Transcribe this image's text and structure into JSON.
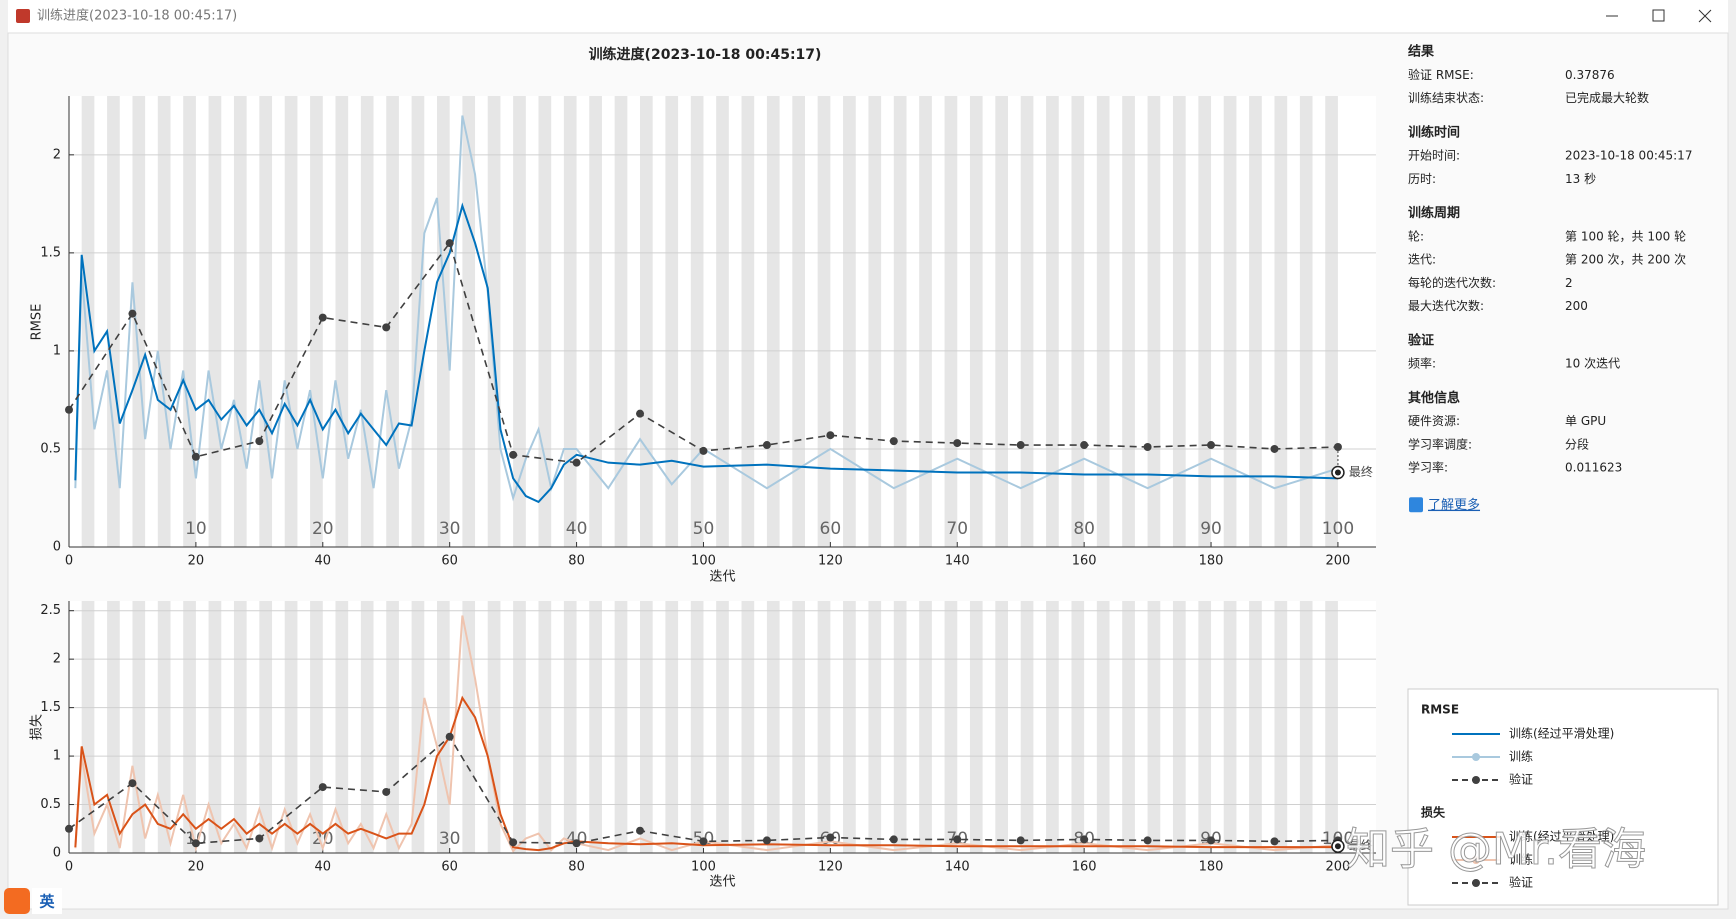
{
  "window": {
    "title": "训练进度(2023-10-18 00:45:17)"
  },
  "chart_data": [
    {
      "type": "line",
      "title": "训练进度(2023-10-18 00:45:17)",
      "ylabel": "RMSE",
      "xlabel": "迭代",
      "xlim": [
        0,
        206
      ],
      "ylim": [
        0,
        2.3
      ],
      "xticks": [
        0,
        20,
        40,
        60,
        80,
        100,
        120,
        140,
        160,
        180,
        200
      ],
      "yticks": [
        0,
        0.5,
        1,
        1.5,
        2
      ],
      "epoch_ticks": [
        10,
        20,
        30,
        40,
        50,
        60,
        70,
        80,
        90,
        100
      ],
      "grid": true,
      "series": [
        {
          "name": "训练",
          "color": "#a9c9de",
          "style": "solid",
          "x": [
            1,
            2,
            4,
            6,
            8,
            10,
            12,
            14,
            16,
            18,
            20,
            22,
            24,
            26,
            28,
            30,
            32,
            34,
            36,
            38,
            40,
            42,
            44,
            46,
            48,
            50,
            52,
            54,
            56,
            58,
            60,
            62,
            64,
            66,
            68,
            70,
            72,
            74,
            76,
            78,
            80,
            85,
            90,
            95,
            100,
            110,
            120,
            130,
            140,
            150,
            160,
            170,
            180,
            190,
            200
          ],
          "values": [
            0.3,
            1.4,
            0.6,
            0.9,
            0.3,
            1.35,
            0.55,
            1.0,
            0.5,
            0.9,
            0.35,
            0.9,
            0.5,
            0.75,
            0.4,
            0.85,
            0.35,
            0.85,
            0.5,
            0.8,
            0.35,
            0.85,
            0.45,
            0.7,
            0.3,
            0.8,
            0.4,
            0.65,
            1.6,
            1.78,
            0.9,
            2.2,
            1.9,
            1.3,
            0.5,
            0.25,
            0.45,
            0.6,
            0.3,
            0.5,
            0.5,
            0.3,
            0.55,
            0.32,
            0.5,
            0.3,
            0.5,
            0.3,
            0.45,
            0.3,
            0.45,
            0.3,
            0.45,
            0.3,
            0.4
          ]
        },
        {
          "name": "训练(经过平滑处理)",
          "color": "#0072bd",
          "style": "solid",
          "x": [
            1,
            2,
            4,
            6,
            8,
            10,
            12,
            14,
            16,
            18,
            20,
            22,
            24,
            26,
            28,
            30,
            32,
            34,
            36,
            38,
            40,
            42,
            44,
            46,
            48,
            50,
            52,
            54,
            56,
            58,
            60,
            62,
            64,
            66,
            68,
            70,
            72,
            74,
            76,
            78,
            80,
            85,
            90,
            95,
            100,
            110,
            120,
            130,
            140,
            150,
            160,
            170,
            180,
            190,
            200
          ],
          "values": [
            0.34,
            1.49,
            1.0,
            1.1,
            0.63,
            0.8,
            0.98,
            0.75,
            0.7,
            0.85,
            0.7,
            0.75,
            0.65,
            0.72,
            0.62,
            0.7,
            0.58,
            0.73,
            0.62,
            0.75,
            0.6,
            0.7,
            0.58,
            0.68,
            0.6,
            0.52,
            0.63,
            0.62,
            1.0,
            1.35,
            1.5,
            1.74,
            1.55,
            1.32,
            0.6,
            0.35,
            0.26,
            0.23,
            0.3,
            0.42,
            0.47,
            0.43,
            0.42,
            0.44,
            0.41,
            0.42,
            0.4,
            0.39,
            0.38,
            0.38,
            0.37,
            0.37,
            0.36,
            0.36,
            0.35
          ]
        },
        {
          "name": "验证",
          "color": "#404040",
          "style": "dashed",
          "markers": true,
          "x": [
            0,
            10,
            20,
            30,
            40,
            50,
            60,
            70,
            80,
            90,
            100,
            110,
            120,
            130,
            140,
            150,
            160,
            170,
            180,
            190,
            200
          ],
          "values": [
            0.7,
            1.19,
            0.46,
            0.54,
            1.17,
            1.12,
            1.55,
            0.47,
            0.43,
            0.68,
            0.49,
            0.52,
            0.57,
            0.54,
            0.53,
            0.52,
            0.52,
            0.51,
            0.52,
            0.5,
            0.51
          ]
        }
      ],
      "final": {
        "x": 200,
        "value": 0.38,
        "label": "最终"
      }
    },
    {
      "type": "line",
      "ylabel": "损失",
      "xlabel": "迭代",
      "xlim": [
        0,
        206
      ],
      "ylim": [
        0,
        2.6
      ],
      "xticks": [
        0,
        20,
        40,
        60,
        80,
        100,
        120,
        140,
        160,
        180,
        200
      ],
      "yticks": [
        0,
        0.5,
        1,
        1.5,
        2,
        2.5
      ],
      "epoch_ticks": [
        10,
        20,
        30,
        40,
        50,
        60,
        70,
        80,
        90,
        100
      ],
      "grid": true,
      "series": [
        {
          "name": "训练",
          "color": "#efc4af",
          "style": "solid",
          "x": [
            1,
            2,
            4,
            6,
            8,
            10,
            12,
            14,
            16,
            18,
            20,
            22,
            24,
            26,
            28,
            30,
            32,
            34,
            36,
            38,
            40,
            42,
            44,
            46,
            48,
            50,
            52,
            54,
            56,
            58,
            60,
            62,
            64,
            66,
            68,
            70,
            72,
            74,
            76,
            78,
            80,
            85,
            90,
            95,
            100,
            110,
            120,
            130,
            140,
            150,
            160,
            170,
            180,
            190,
            200
          ],
          "values": [
            0.05,
            1.0,
            0.2,
            0.5,
            0.05,
            0.9,
            0.15,
            0.6,
            0.1,
            0.6,
            0.05,
            0.5,
            0.1,
            0.3,
            0.05,
            0.45,
            0.05,
            0.45,
            0.1,
            0.4,
            0.05,
            0.45,
            0.1,
            0.3,
            0.05,
            0.4,
            0.05,
            0.3,
            1.6,
            1.1,
            0.5,
            2.45,
            1.8,
            1.0,
            0.3,
            0.02,
            0.15,
            0.2,
            0.03,
            0.15,
            0.1,
            0.03,
            0.15,
            0.03,
            0.12,
            0.03,
            0.12,
            0.03,
            0.1,
            0.03,
            0.1,
            0.03,
            0.1,
            0.03,
            0.08
          ]
        },
        {
          "name": "训练(经过平滑处理)",
          "color": "#d95319",
          "style": "solid",
          "x": [
            1,
            2,
            4,
            6,
            8,
            10,
            12,
            14,
            16,
            18,
            20,
            22,
            24,
            26,
            28,
            30,
            32,
            34,
            36,
            38,
            40,
            42,
            44,
            46,
            48,
            50,
            52,
            54,
            56,
            58,
            60,
            62,
            64,
            66,
            68,
            70,
            72,
            74,
            76,
            78,
            80,
            85,
            90,
            95,
            100,
            110,
            120,
            130,
            140,
            150,
            160,
            170,
            180,
            190,
            200
          ],
          "values": [
            0.06,
            1.1,
            0.5,
            0.6,
            0.2,
            0.4,
            0.5,
            0.3,
            0.25,
            0.4,
            0.25,
            0.35,
            0.25,
            0.35,
            0.2,
            0.3,
            0.2,
            0.3,
            0.2,
            0.3,
            0.2,
            0.3,
            0.2,
            0.25,
            0.2,
            0.15,
            0.2,
            0.2,
            0.5,
            1.0,
            1.2,
            1.6,
            1.4,
            1.0,
            0.4,
            0.06,
            0.04,
            0.03,
            0.05,
            0.1,
            0.12,
            0.1,
            0.09,
            0.1,
            0.08,
            0.09,
            0.08,
            0.08,
            0.07,
            0.07,
            0.07,
            0.07,
            0.06,
            0.06,
            0.06
          ]
        },
        {
          "name": "验证",
          "color": "#404040",
          "style": "dashed",
          "markers": true,
          "x": [
            0,
            10,
            20,
            30,
            40,
            50,
            60,
            70,
            80,
            90,
            100,
            110,
            120,
            130,
            140,
            150,
            160,
            170,
            180,
            190,
            200
          ],
          "values": [
            0.25,
            0.72,
            0.1,
            0.15,
            0.68,
            0.63,
            1.2,
            0.11,
            0.1,
            0.23,
            0.12,
            0.13,
            0.16,
            0.14,
            0.14,
            0.13,
            0.14,
            0.13,
            0.13,
            0.12,
            0.13
          ]
        }
      ],
      "final": {
        "x": 200,
        "value": 0.07,
        "label": "最终"
      }
    }
  ],
  "info": {
    "sections": [
      {
        "title": "结果",
        "rows": [
          [
            "验证 RMSE:",
            "0.37876"
          ],
          [
            "训练结束状态:",
            "已完成最大轮数"
          ]
        ]
      },
      {
        "title": "训练时间",
        "rows": [
          [
            "开始时间:",
            "2023-10-18 00:45:17"
          ],
          [
            "历时:",
            "13 秒"
          ]
        ]
      },
      {
        "title": "训练周期",
        "rows": [
          [
            "轮:",
            "第 100 轮，共 100 轮"
          ],
          [
            "迭代:",
            "第 200 次，共 200 次"
          ],
          [
            "每轮的迭代次数:",
            "2"
          ],
          [
            "最大迭代次数:",
            "200"
          ]
        ]
      },
      {
        "title": "验证",
        "rows": [
          [
            "频率:",
            "10 次迭代"
          ]
        ]
      },
      {
        "title": "其他信息",
        "rows": [
          [
            "硬件资源:",
            "单 GPU"
          ],
          [
            "学习率调度:",
            "分段"
          ],
          [
            "学习率:",
            "0.011623"
          ]
        ]
      }
    ],
    "link": "了解更多"
  },
  "watermark": "知乎 @Mr.看海",
  "ime": "英"
}
